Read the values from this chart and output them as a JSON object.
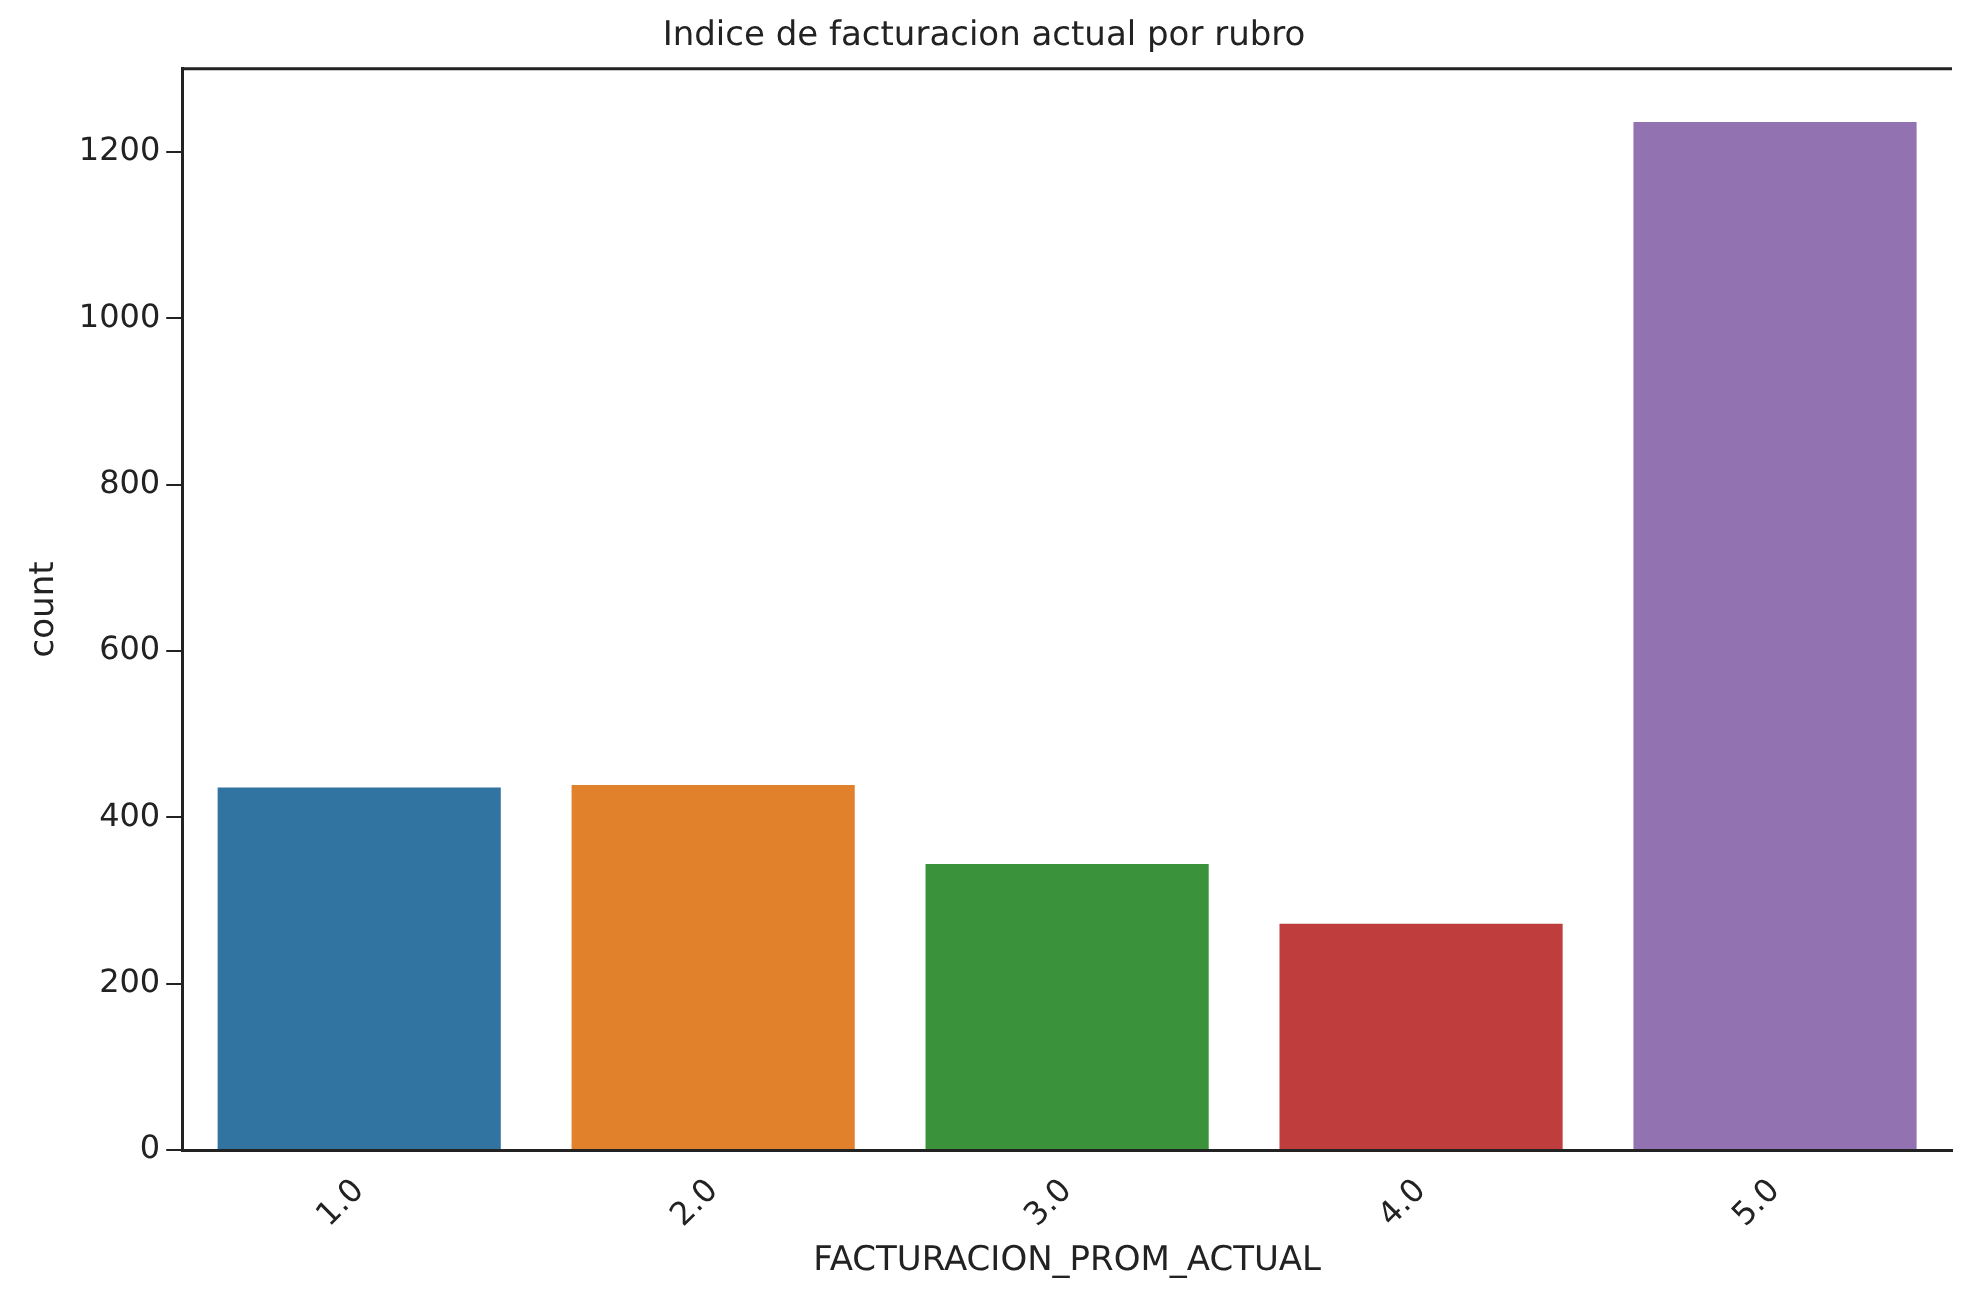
{
  "chart_data": {
    "type": "bar",
    "title": "Indice de facturacion actual por rubro",
    "xlabel": "FACTURACION_PROM_ACTUAL",
    "ylabel": "count",
    "categories": [
      "1.0",
      "2.0",
      "3.0",
      "4.0",
      "5.0"
    ],
    "values": [
      436,
      439,
      344,
      272,
      1236
    ],
    "colors": [
      "#3274a1",
      "#e1812c",
      "#3a923a",
      "#c03d3e",
      "#9372b2"
    ],
    "ylim": [
      0,
      1300
    ],
    "yticks": [
      0,
      200,
      400,
      600,
      800,
      1000,
      1200
    ],
    "grid": false,
    "legend": false
  }
}
